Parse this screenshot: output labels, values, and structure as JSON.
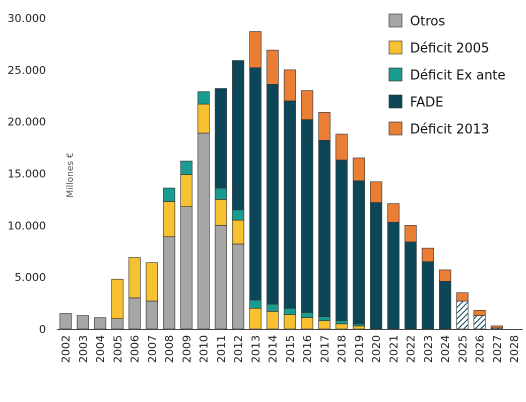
{
  "chart_data": {
    "type": "bar",
    "stacked": true,
    "ylabel": "Millones €",
    "ylim": [
      0,
      30000
    ],
    "yticks": [
      0,
      5000,
      10000,
      15000,
      20000,
      25000,
      30000
    ],
    "ytick_labels": [
      "0",
      "5.000",
      "10.000",
      "15.000",
      "20.000",
      "25.000",
      "30.000"
    ],
    "grid": false,
    "legend_position": "top-right",
    "categories": [
      "2002",
      "2003",
      "2004",
      "2005",
      "2006",
      "2007",
      "2008",
      "2009",
      "2010",
      "2011",
      "2012",
      "2013",
      "2014",
      "2015",
      "2016",
      "2017",
      "2018",
      "2019",
      "2020",
      "2021",
      "2022",
      "2023",
      "2024",
      "2025",
      "2026",
      "2027",
      "2028"
    ],
    "series": [
      {
        "name": "Otros",
        "color": "#a6a6a6",
        "values": [
          1500,
          1300,
          1100,
          1000,
          3000,
          2700,
          8900,
          11800,
          18900,
          10000,
          8200,
          0,
          0,
          0,
          0,
          0,
          0,
          0,
          0,
          0,
          0,
          0,
          0,
          0,
          0,
          0,
          0
        ]
      },
      {
        "name": "Déficit 2005",
        "color": "#f8c132",
        "values": [
          0,
          0,
          0,
          3800,
          3900,
          3700,
          3400,
          3100,
          2800,
          2500,
          2300,
          2000,
          1700,
          1400,
          1100,
          800,
          500,
          300,
          0,
          0,
          0,
          0,
          0,
          0,
          0,
          0,
          0
        ]
      },
      {
        "name": "Déficit Ex ante",
        "color": "#1a9b8f",
        "values": [
          0,
          0,
          0,
          0,
          0,
          0,
          1300,
          1300,
          1200,
          1100,
          1000,
          800,
          700,
          600,
          500,
          400,
          300,
          200,
          0,
          0,
          0,
          0,
          0,
          0,
          0,
          0,
          0
        ]
      },
      {
        "name": "FADE",
        "color": "#0b4758",
        "values": [
          0,
          0,
          0,
          0,
          0,
          0,
          0,
          0,
          0,
          9600,
          14400,
          22400,
          21200,
          20000,
          18600,
          17000,
          15500,
          13800,
          12200,
          10300,
          8400,
          6500,
          4600,
          0,
          0,
          0,
          0
        ]
      },
      {
        "name": "Déficit 2013",
        "color": "#eb7e35",
        "values": [
          0,
          0,
          0,
          0,
          0,
          0,
          0,
          0,
          0,
          0,
          0,
          3500,
          3300,
          3000,
          2800,
          2700,
          2500,
          2200,
          2000,
          1800,
          1600,
          1300,
          1100,
          800,
          500,
          200,
          0
        ]
      }
    ],
    "hatched_series": {
      "color": "#0b4758",
      "values": [
        0,
        0,
        0,
        0,
        0,
        0,
        0,
        0,
        0,
        0,
        0,
        0,
        0,
        0,
        0,
        0,
        0,
        0,
        0,
        0,
        0,
        0,
        0,
        2700,
        1300,
        100,
        0
      ]
    }
  }
}
